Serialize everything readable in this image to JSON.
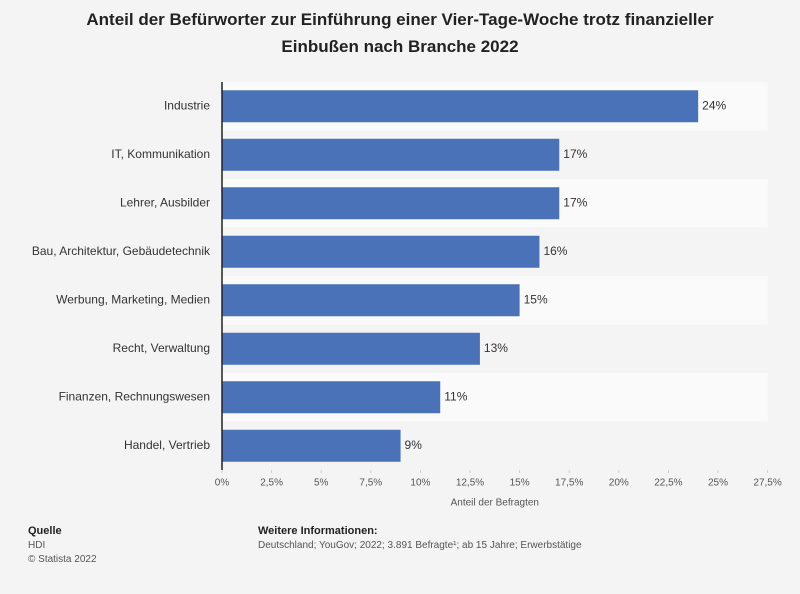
{
  "chart_data": {
    "type": "bar",
    "orientation": "horizontal",
    "title": "Anteil der Befürworter zur Einführung einer Vier-Tage-Woche trotz finanzieller Einbußen nach Branche 2022",
    "categories": [
      "Industrie",
      "IT, Kommunikation",
      "Lehrer, Ausbilder",
      "Bau, Architektur, Gebäudetechnik",
      "Werbung, Marketing, Medien",
      "Recht, Verwaltung",
      "Finanzen, Rechnungswesen",
      "Handel, Vertrieb"
    ],
    "values": [
      24,
      17,
      17,
      16,
      15,
      13,
      11,
      9
    ],
    "value_labels": [
      "24%",
      "17%",
      "17%",
      "16%",
      "15%",
      "13%",
      "11%",
      "9%"
    ],
    "color": "#4a72b8",
    "xlabel": "Anteil der Befragten",
    "xlim": [
      0,
      27.5
    ],
    "xticks": [
      {
        "value": 0,
        "label": "0%"
      },
      {
        "value": 2.5,
        "label": "2,5%"
      },
      {
        "value": 5,
        "label": "5%"
      },
      {
        "value": 7.5,
        "label": "7,5%"
      },
      {
        "value": 10,
        "label": "10%"
      },
      {
        "value": 12.5,
        "label": "12,5%"
      },
      {
        "value": 15,
        "label": "15%"
      },
      {
        "value": 17.5,
        "label": "17,5%"
      },
      {
        "value": 20,
        "label": "20%"
      },
      {
        "value": 22.5,
        "label": "22,5%"
      },
      {
        "value": 25,
        "label": "25%"
      },
      {
        "value": 27.5,
        "label": "27,5%"
      }
    ],
    "grid": false
  },
  "footer": {
    "source_heading": "Quelle",
    "source": "HDI",
    "copyright": "© Statista 2022",
    "info_heading": "Weitere Informationen:",
    "info": "Deutschland; YouGov; 2022; 3.891 Befragte¹; ab 15 Jahre; Erwerbstätige"
  }
}
